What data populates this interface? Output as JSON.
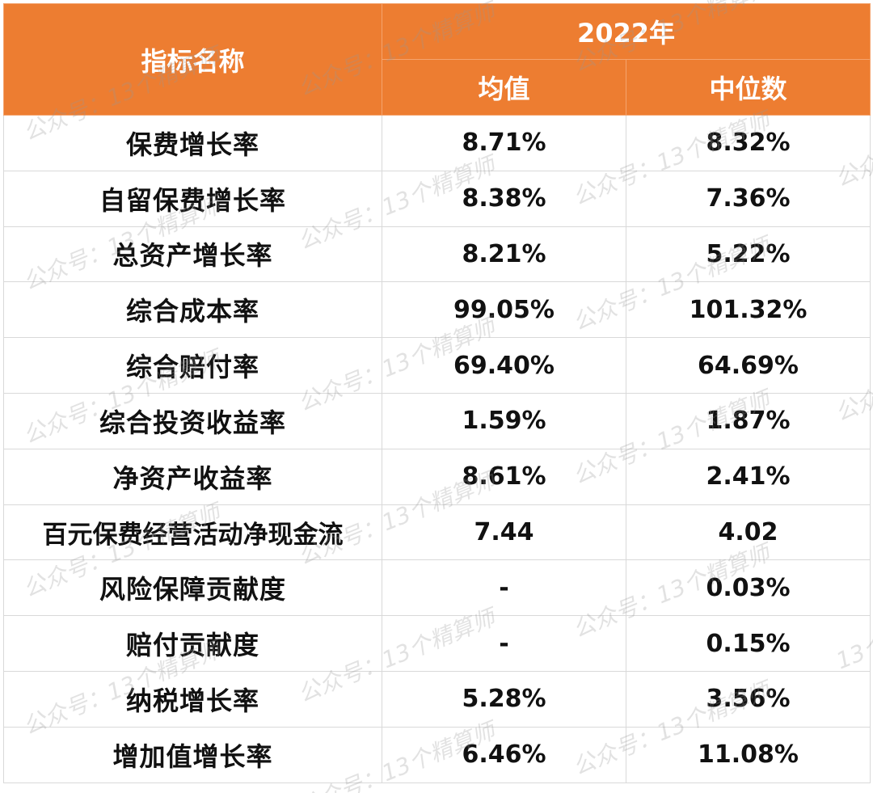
{
  "header": {
    "name_col": "指标名称",
    "year": "2022年",
    "mean_col": "均值",
    "median_col": "中位数"
  },
  "rows": [
    {
      "name": "保费增长率",
      "mean": "8.71%",
      "median": "8.32%"
    },
    {
      "name": "自留保费增长率",
      "mean": "8.38%",
      "median": "7.36%"
    },
    {
      "name": "总资产增长率",
      "mean": "8.21%",
      "median": "5.22%"
    },
    {
      "name": "综合成本率",
      "mean": "99.05%",
      "median": "101.32%"
    },
    {
      "name": "综合赔付率",
      "mean": "69.40%",
      "median": "64.69%"
    },
    {
      "name": "综合投资收益率",
      "mean": "1.59%",
      "median": "1.87%"
    },
    {
      "name": "净资产收益率",
      "mean": "8.61%",
      "median": "2.41%"
    },
    {
      "name": "百元保费经营活动净现金流",
      "mean": "7.44",
      "median": "4.02"
    },
    {
      "name": "风险保障贡献度",
      "mean": "-",
      "median": "0.03%"
    },
    {
      "name": "赔付贡献度",
      "mean": "-",
      "median": "0.15%"
    },
    {
      "name": "纳税增长率",
      "mean": "5.28%",
      "median": "3.56%"
    },
    {
      "name": "增加值增长率",
      "mean": "6.46%",
      "median": "11.08%"
    }
  ],
  "watermark": {
    "text_a": "公众号：",
    "text_b": "13个精算师",
    "text_full": "公众号：13个精算师"
  }
}
